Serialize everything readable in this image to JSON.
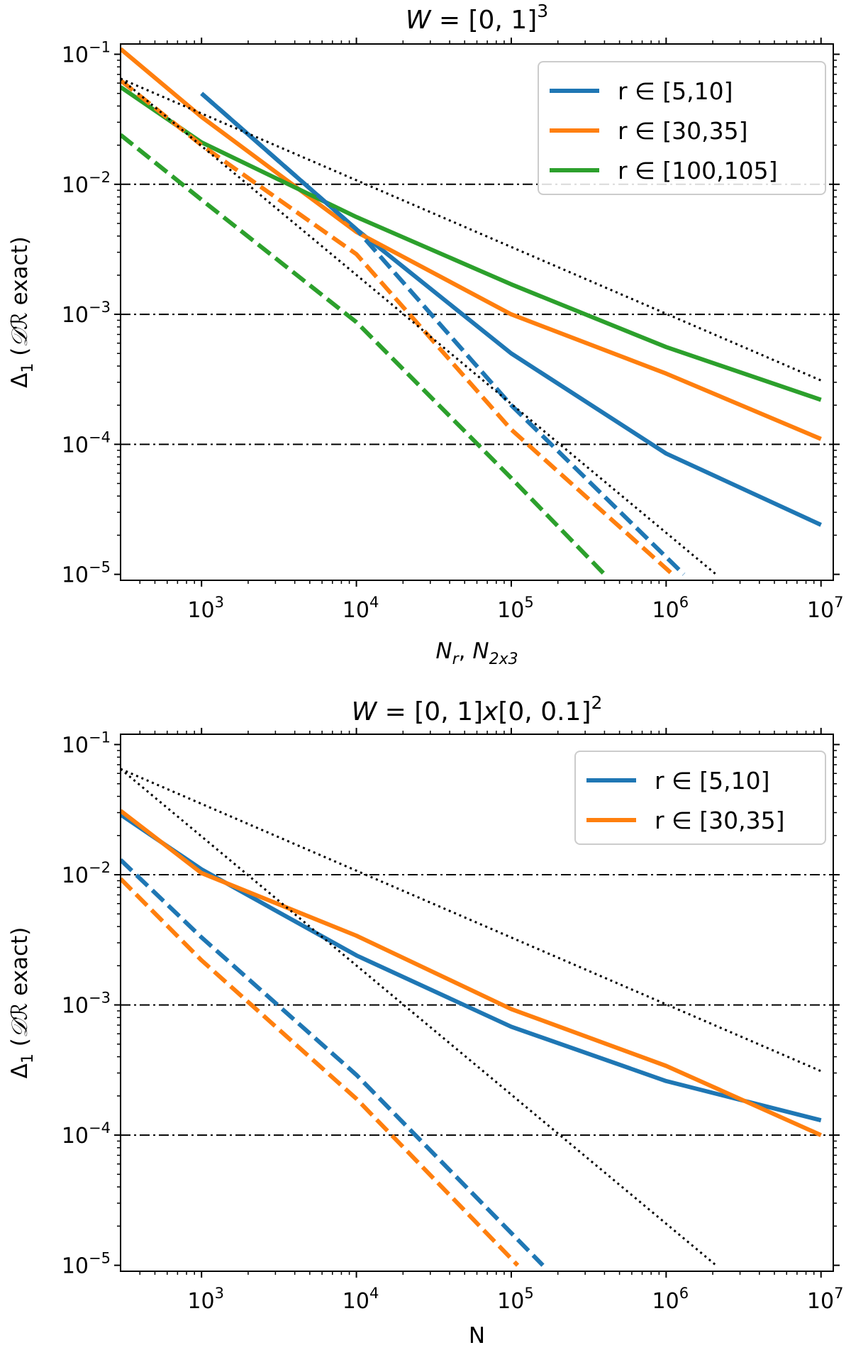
{
  "chart_data": [
    {
      "type": "line",
      "title": "W = [0, 1]^3",
      "xlabel": "N_r, N_2x3",
      "ylabel": "Δ_1 (𝒟ℛ exact)",
      "xscale": "log",
      "yscale": "log",
      "xlim": [
        300,
        12000000
      ],
      "ylim": [
        9e-06,
        0.12
      ],
      "x_ticks": [
        {
          "value": 1000,
          "base": "10",
          "exp": "3"
        },
        {
          "value": 10000,
          "base": "10",
          "exp": "4"
        },
        {
          "value": 100000,
          "base": "10",
          "exp": "5"
        },
        {
          "value": 1000000,
          "base": "10",
          "exp": "6"
        },
        {
          "value": 10000000,
          "base": "10",
          "exp": "7"
        }
      ],
      "y_ticks": [
        {
          "value": 0.1,
          "base": "10",
          "exp": "−1"
        },
        {
          "value": 0.01,
          "base": "10",
          "exp": "−2"
        },
        {
          "value": 0.001,
          "base": "10",
          "exp": "−3"
        },
        {
          "value": 0.0001,
          "base": "10",
          "exp": "−4"
        },
        {
          "value": 1e-05,
          "base": "10",
          "exp": "−5"
        }
      ],
      "hlines": [
        0.01,
        0.001,
        0.0001
      ],
      "legend": "top-right",
      "series": [
        {
          "name": "r ∈ [5,10]",
          "color": "#1f77b4",
          "style": "solid",
          "x": [
            1000,
            10000,
            100000,
            1000000,
            10000000
          ],
          "y": [
            0.05,
            0.0045,
            0.0005,
            8.5e-05,
            2.4e-05
          ]
        },
        {
          "name": "r ∈ [30,35]",
          "color": "#ff7f0e",
          "style": "solid",
          "x": [
            300,
            1000,
            10000,
            100000,
            1000000,
            10000000
          ],
          "y": [
            0.11,
            0.033,
            0.0043,
            0.001,
            0.00035,
            0.00011
          ]
        },
        {
          "name": "r ∈ [100,105]",
          "color": "#2ca02c",
          "style": "solid",
          "x": [
            300,
            1000,
            10000,
            100000,
            1000000,
            10000000
          ],
          "y": [
            0.056,
            0.021,
            0.0056,
            0.0017,
            0.00056,
            0.00022
          ]
        },
        {
          "name": "",
          "color": "#1f77b4",
          "style": "dashed",
          "x": [
            1000,
            10000,
            100000,
            1300000
          ],
          "y": [
            0.05,
            0.0045,
            0.0002,
            1e-05
          ]
        },
        {
          "name": "",
          "color": "#ff7f0e",
          "style": "dashed",
          "x": [
            300,
            1000,
            10000,
            100000,
            1100000
          ],
          "y": [
            0.063,
            0.02,
            0.0029,
            0.00013,
            1e-05
          ]
        },
        {
          "name": "",
          "color": "#2ca02c",
          "style": "dashed",
          "x": [
            300,
            1000,
            10000,
            100000,
            400000
          ],
          "y": [
            0.024,
            0.0076,
            0.00087,
            5.5e-05,
            1e-05
          ]
        },
        {
          "name": "",
          "color": "#000000",
          "style": "dotted",
          "x": [
            300,
            10000000
          ],
          "y": [
            0.065,
            0.00031
          ]
        },
        {
          "name": "",
          "color": "#000000",
          "style": "dotted",
          "x": [
            300,
            2100000
          ],
          "y": [
            0.065,
            1e-05
          ]
        }
      ]
    },
    {
      "type": "line",
      "title": "W = [0, 1]x[0, 0.1]^2",
      "xlabel": "N",
      "ylabel": "Δ_1 (𝒟ℛ exact)",
      "xscale": "log",
      "yscale": "log",
      "xlim": [
        300,
        12000000
      ],
      "ylim": [
        9e-06,
        0.12
      ],
      "x_ticks": [
        {
          "value": 1000,
          "base": "10",
          "exp": "3"
        },
        {
          "value": 10000,
          "base": "10",
          "exp": "4"
        },
        {
          "value": 100000,
          "base": "10",
          "exp": "5"
        },
        {
          "value": 1000000,
          "base": "10",
          "exp": "6"
        },
        {
          "value": 10000000,
          "base": "10",
          "exp": "7"
        }
      ],
      "y_ticks": [
        {
          "value": 0.1,
          "base": "10",
          "exp": "−1"
        },
        {
          "value": 0.01,
          "base": "10",
          "exp": "−2"
        },
        {
          "value": 0.001,
          "base": "10",
          "exp": "−3"
        },
        {
          "value": 0.0001,
          "base": "10",
          "exp": "−4"
        },
        {
          "value": 1e-05,
          "base": "10",
          "exp": "−5"
        }
      ],
      "hlines": [
        0.01,
        0.001,
        0.0001
      ],
      "legend": "top-right",
      "series": [
        {
          "name": "r ∈ [5,10]",
          "color": "#1f77b4",
          "style": "solid",
          "x": [
            300,
            1000,
            10000,
            100000,
            1000000,
            10000000
          ],
          "y": [
            0.029,
            0.011,
            0.0024,
            0.00068,
            0.00026,
            0.00013
          ]
        },
        {
          "name": "r ∈ [30,35]",
          "color": "#ff7f0e",
          "style": "solid",
          "x": [
            300,
            1000,
            10000,
            100000,
            1000000,
            10000000
          ],
          "y": [
            0.031,
            0.0103,
            0.0034,
            0.00093,
            0.00034,
            0.0001
          ]
        },
        {
          "name": "",
          "color": "#1f77b4",
          "style": "dashed",
          "x": [
            300,
            1000,
            10000,
            160000
          ],
          "y": [
            0.013,
            0.0033,
            0.00029,
            1e-05
          ]
        },
        {
          "name": "",
          "color": "#ff7f0e",
          "style": "dashed",
          "x": [
            300,
            1000,
            10000,
            110000
          ],
          "y": [
            0.0093,
            0.0022,
            0.00019,
            1e-05
          ]
        },
        {
          "name": "",
          "color": "#000000",
          "style": "dotted",
          "x": [
            300,
            10000000
          ],
          "y": [
            0.065,
            0.00031
          ]
        },
        {
          "name": "",
          "color": "#000000",
          "style": "dotted",
          "x": [
            300,
            2100000
          ],
          "y": [
            0.065,
            1e-05
          ]
        }
      ]
    }
  ]
}
